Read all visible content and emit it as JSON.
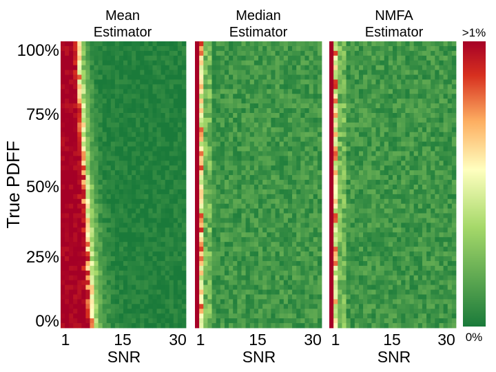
{
  "chart_data": {
    "type": "heatmap",
    "ylabel": "True PDFF",
    "y_ticks": [
      "0%",
      "25%",
      "50%",
      "75%",
      "100%"
    ],
    "y_range": [
      0,
      100
    ],
    "x_range": [
      1,
      30
    ],
    "x_ticks": [
      "1",
      "15",
      "30"
    ],
    "panels": [
      {
        "title_line1": "Mean",
        "title_line2": "Estimator",
        "xlabel": "SNR",
        "model": "mean",
        "description": "High error (>1%) at low SNR; the red region extends to SNR about 5-8, widening as PDFF decreases"
      },
      {
        "title_line1": "Median",
        "title_line2": "Estimator",
        "xlabel": "SNR",
        "model": "robust",
        "description": "Red only in the lowest SNR column (~1-2), mostly green elsewhere"
      },
      {
        "title_line1": "NMFA",
        "title_line2": "Estimator",
        "xlabel": "SNR",
        "model": "robust",
        "description": "Red only in the lowest SNR column (~1-2), mostly green elsewhere"
      }
    ],
    "colorbar": {
      "max_label": ">1%",
      "min_label": "0%",
      "range": [
        0,
        1
      ],
      "colors": [
        "#1a7a3a",
        "#a6d96a",
        "#ffffbf",
        "#fdae61",
        "#d7301f",
        "#a50026"
      ]
    },
    "grid_resolution": {
      "snr_bins": 30,
      "pdff_bins": 60
    }
  }
}
